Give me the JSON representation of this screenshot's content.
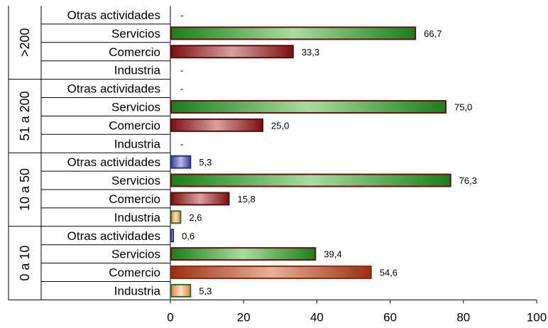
{
  "chart_data": {
    "type": "bar",
    "orientation": "horizontal",
    "title": "",
    "xlabel": "",
    "ylabel": "",
    "xlim": [
      0,
      100
    ],
    "x_ticks": [
      "0",
      "20",
      "40",
      "60",
      "80",
      "100"
    ],
    "grid": false,
    "legend": "none",
    "groups": [
      {
        "name": ">200",
        "bars": [
          {
            "category": "Otras actividades",
            "value": null,
            "label": "-"
          },
          {
            "category": "Servicios",
            "value": 66.7,
            "label": "66,7"
          },
          {
            "category": "Comercio",
            "value": 33.3,
            "label": "33,3"
          },
          {
            "category": "Industria",
            "value": null,
            "label": "-"
          }
        ]
      },
      {
        "name": "51 a 200",
        "bars": [
          {
            "category": "Otras actividades",
            "value": null,
            "label": "-"
          },
          {
            "category": "Servicios",
            "value": 75.0,
            "label": "75,0"
          },
          {
            "category": "Comercio",
            "value": 25.0,
            "label": "25,0"
          },
          {
            "category": "Industria",
            "value": null,
            "label": "-"
          }
        ]
      },
      {
        "name": "10 a 50",
        "bars": [
          {
            "category": "Otras actividades",
            "value": 5.3,
            "label": "5,3"
          },
          {
            "category": "Servicios",
            "value": 76.3,
            "label": "76,3"
          },
          {
            "category": "Comercio",
            "value": 15.8,
            "label": "15,8"
          },
          {
            "category": "Industria",
            "value": 2.6,
            "label": "2,6"
          }
        ]
      },
      {
        "name": "0 a 10",
        "bars": [
          {
            "category": "Otras actividades",
            "value": 0.6,
            "label": "0,6"
          },
          {
            "category": "Servicios",
            "value": 39.4,
            "label": "39,4"
          },
          {
            "category": "Comercio",
            "value": 54.6,
            "label": "54,6"
          },
          {
            "category": "Industria",
            "value": 5.3,
            "label": "5,3"
          }
        ]
      }
    ],
    "colors": {
      "Otras actividades": "#5a5fb0",
      "Servicios": "#1e8c1e",
      "Comercio": "#8b1a1a",
      "Comercio_0a10": "#a83a14",
      "Industria": "#f07a3a"
    }
  }
}
